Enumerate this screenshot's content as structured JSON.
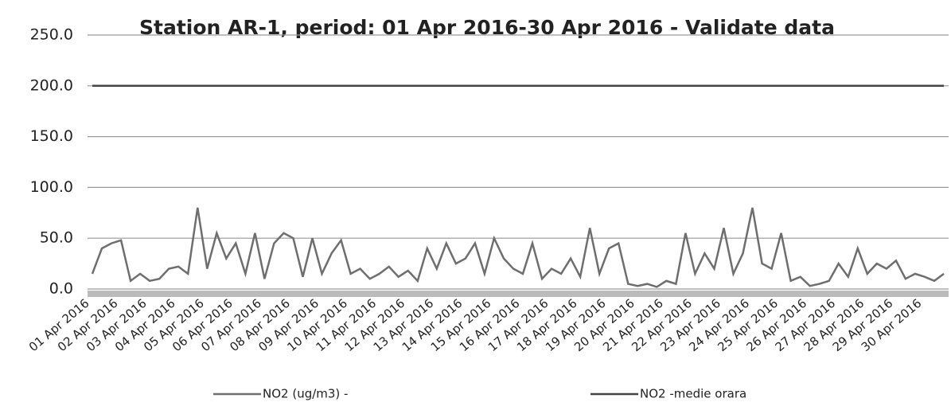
{
  "chart_data": {
    "type": "line",
    "title": "Station AR-1, period: 01 Apr 2016-30 Apr 2016 - Validate data",
    "categories": [
      "01 Apr 2016",
      null,
      null,
      "02 Apr 2016",
      null,
      null,
      "03 Apr 2016",
      null,
      null,
      "04 Apr 2016",
      null,
      null,
      "05 Apr 2016",
      null,
      null,
      "06 Apr 2016",
      null,
      null,
      "07 Apr 2016",
      null,
      null,
      "08 Apr 2016",
      null,
      null,
      "09 Apr 2016",
      null,
      null,
      "10 Apr 2016",
      null,
      null,
      "11 Apr 2016",
      null,
      null,
      "12 Apr 2016",
      null,
      null,
      "13 Apr 2016",
      null,
      null,
      "14 Apr 2016",
      null,
      null,
      "15 Apr 2016",
      null,
      null,
      "16 Apr 2016",
      null,
      null,
      "17 Apr 2016",
      null,
      null,
      "18 Apr 2016",
      null,
      null,
      "19 Apr 2016",
      null,
      null,
      "20 Apr 2016",
      null,
      null,
      "21 Apr 2016",
      null,
      null,
      "22 Apr 2016",
      null,
      null,
      "23 Apr 2016",
      null,
      null,
      "24 Apr 2016",
      null,
      null,
      "25 Apr 2016",
      null,
      null,
      "26 Apr 2016",
      null,
      null,
      "27 Apr 2016",
      null,
      null,
      "28 Apr 2016",
      null,
      null,
      "29 Apr 2016",
      null,
      null,
      "30 Apr 2016",
      null,
      null
    ],
    "series": [
      {
        "name": "NO2 (ug/m3)  -",
        "color": "#6e6e6e",
        "values": [
          15,
          40,
          45,
          48,
          8,
          15,
          8,
          10,
          20,
          22,
          15,
          80,
          20,
          55,
          30,
          45,
          15,
          55,
          10,
          45,
          55,
          50,
          12,
          50,
          15,
          35,
          48,
          15,
          20,
          10,
          15,
          22,
          12,
          18,
          8,
          40,
          20,
          45,
          25,
          30,
          45,
          15,
          50,
          30,
          20,
          15,
          45,
          10,
          20,
          15,
          30,
          12,
          60,
          15,
          40,
          45,
          5,
          3,
          5,
          2,
          8,
          5,
          55,
          15,
          35,
          20,
          60,
          15,
          35,
          80,
          25,
          20,
          55,
          8,
          12,
          3,
          5,
          8,
          25,
          12,
          40,
          15,
          25,
          20,
          28,
          10,
          15,
          12,
          8,
          15
        ]
      },
      {
        "name": "NO2 -medie orara",
        "color": "#444444",
        "values": [
          200,
          200,
          200,
          200,
          200,
          200,
          200,
          200,
          200,
          200,
          200,
          200,
          200,
          200,
          200,
          200,
          200,
          200,
          200,
          200,
          200,
          200,
          200,
          200,
          200,
          200,
          200,
          200,
          200,
          200,
          200,
          200,
          200,
          200,
          200,
          200,
          200,
          200,
          200,
          200,
          200,
          200,
          200,
          200,
          200,
          200,
          200,
          200,
          200,
          200,
          200,
          200,
          200,
          200,
          200,
          200,
          200,
          200,
          200,
          200,
          200,
          200,
          200,
          200,
          200,
          200,
          200,
          200,
          200,
          200,
          200,
          200,
          200,
          200,
          200,
          200,
          200,
          200,
          200,
          200,
          200,
          200,
          200,
          200,
          200,
          200,
          200,
          200,
          200,
          200
        ]
      }
    ],
    "ylim": [
      0,
      250
    ],
    "yticks": [
      {
        "value": 0,
        "label": "0.0"
      },
      {
        "value": 50,
        "label": "50.0"
      },
      {
        "value": 100,
        "label": "100.0"
      },
      {
        "value": 150,
        "label": "150.0"
      },
      {
        "value": 200,
        "label": "200.0"
      },
      {
        "value": 250,
        "label": "250.0"
      }
    ],
    "grid": true
  }
}
